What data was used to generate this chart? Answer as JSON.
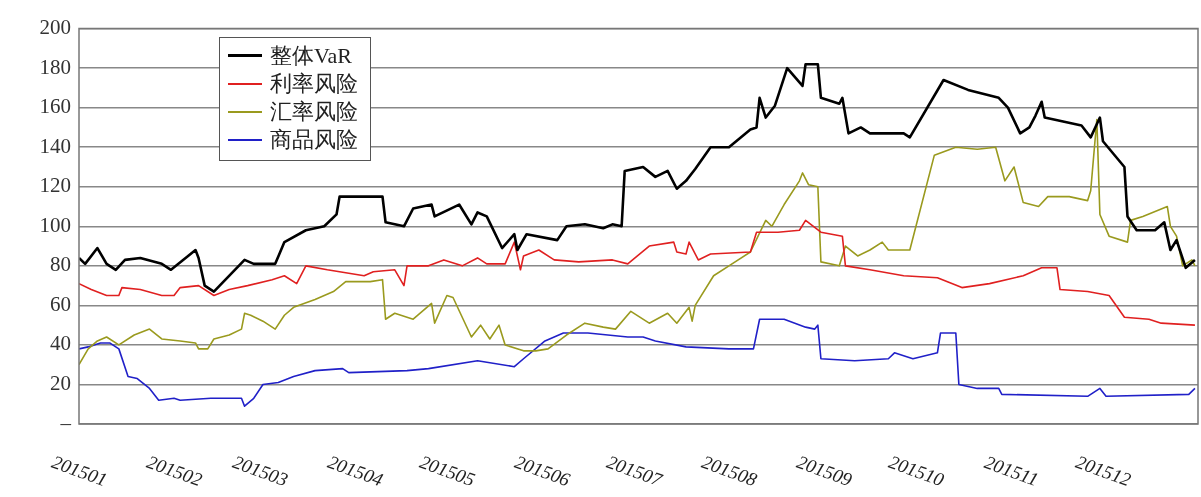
{
  "chart_data": {
    "type": "line",
    "xlim": [
      "2015-01-01",
      "2016-01-01"
    ],
    "xticks": [
      {
        "value": "2015-01",
        "label": "201501"
      },
      {
        "value": "2015-02",
        "label": "201502"
      },
      {
        "value": "2015-03",
        "label": "201503"
      },
      {
        "value": "2015-04",
        "label": "201504"
      },
      {
        "value": "2015-05",
        "label": "201505"
      },
      {
        "value": "2015-06",
        "label": "201506"
      },
      {
        "value": "2015-07",
        "label": "201507"
      },
      {
        "value": "2015-08",
        "label": "201508"
      },
      {
        "value": "2015-09",
        "label": "201509"
      },
      {
        "value": "2015-10",
        "label": "201510"
      },
      {
        "value": "2015-11",
        "label": "201511"
      },
      {
        "value": "2015-12",
        "label": "201512"
      }
    ],
    "ylim": [
      0,
      200
    ],
    "yticks": [
      {
        "value": 0,
        "label": "–"
      },
      20,
      40,
      60,
      80,
      100,
      120,
      140,
      160,
      180,
      200
    ],
    "grid": "y",
    "legend": "top left",
    "marker": "none",
    "line_style": "solid",
    "series": [
      {
        "name": "整体VaR",
        "color": "#000000",
        "x": [
          "2015-01-01",
          "2015-01-03",
          "2015-01-07",
          "2015-01-10",
          "2015-01-13",
          "2015-01-16",
          "2015-01-21",
          "2015-01-28",
          "2015-01-31",
          "2015-02-08",
          "2015-02-09",
          "2015-02-11",
          "2015-02-14",
          "2015-02-24",
          "2015-02-27",
          "2015-03-06",
          "2015-03-09",
          "2015-03-16",
          "2015-03-22",
          "2015-03-26",
          "2015-03-27",
          "2015-04-06",
          "2015-04-10",
          "2015-04-11",
          "2015-04-17",
          "2015-04-20",
          "2015-04-26",
          "2015-04-27",
          "2015-05-05",
          "2015-05-09",
          "2015-05-11",
          "2015-05-14",
          "2015-05-19",
          "2015-05-23",
          "2015-05-24",
          "2015-05-27",
          "2015-06-06",
          "2015-06-09",
          "2015-06-15",
          "2015-06-21",
          "2015-06-24",
          "2015-06-27",
          "2015-06-28",
          "2015-07-04",
          "2015-07-08",
          "2015-07-12",
          "2015-07-15",
          "2015-07-18",
          "2015-07-21",
          "2015-07-26",
          "2015-08-01",
          "2015-08-08",
          "2015-08-10",
          "2015-08-11",
          "2015-08-13",
          "2015-08-16",
          "2015-08-20",
          "2015-08-25",
          "2015-08-26",
          "2015-08-30",
          "2015-08-31",
          "2015-09-06",
          "2015-09-07",
          "2015-09-09",
          "2015-09-13",
          "2015-09-16",
          "2015-09-27",
          "2015-09-29",
          "2015-10-10",
          "2015-10-18",
          "2015-10-28",
          "2015-10-31",
          "2015-11-04",
          "2015-11-07",
          "2015-11-09",
          "2015-11-11",
          "2015-11-12",
          "2015-11-18",
          "2015-11-24",
          "2015-11-27",
          "2015-11-30",
          "2015-12-01",
          "2015-12-08",
          "2015-12-09",
          "2015-12-12",
          "2015-12-18",
          "2015-12-21",
          "2015-12-23",
          "2015-12-25",
          "2015-12-28",
          "2015-12-31"
        ],
        "values": [
          84,
          81,
          89,
          81,
          78,
          83,
          84,
          81,
          78,
          88,
          84,
          70,
          67,
          83,
          81,
          81,
          92,
          98,
          100,
          106,
          115,
          115,
          115,
          102,
          100,
          109,
          111,
          105,
          111,
          101,
          107,
          105,
          89,
          96,
          88,
          96,
          93,
          100,
          101,
          99,
          101,
          100,
          128,
          130,
          125,
          128,
          119,
          123,
          129,
          140,
          140,
          149,
          150,
          165,
          155,
          161,
          180,
          171,
          182,
          182,
          165,
          162,
          165,
          147,
          150,
          147,
          147,
          145,
          174,
          169,
          165,
          160,
          147,
          150,
          156,
          163,
          155,
          153,
          151,
          145,
          155,
          143,
          130,
          105,
          98,
          98,
          102,
          88,
          93,
          79,
          83
        ]
      },
      {
        "name": "利率风险",
        "color": "#e02020",
        "x": [
          "2015-01-01",
          "2015-01-05",
          "2015-01-10",
          "2015-01-14",
          "2015-01-15",
          "2015-01-21",
          "2015-01-28",
          "2015-02-01",
          "2015-02-03",
          "2015-02-09",
          "2015-02-14",
          "2015-02-19",
          "2015-02-25",
          "2015-03-05",
          "2015-03-09",
          "2015-03-13",
          "2015-03-16",
          "2015-03-23",
          "2015-04-04",
          "2015-04-07",
          "2015-04-14",
          "2015-04-17",
          "2015-04-18",
          "2015-04-25",
          "2015-04-30",
          "2015-05-06",
          "2015-05-11",
          "2015-05-14",
          "2015-05-20",
          "2015-05-23",
          "2015-05-25",
          "2015-05-26",
          "2015-05-31",
          "2015-06-05",
          "2015-06-13",
          "2015-06-24",
          "2015-06-29",
          "2015-07-06",
          "2015-07-14",
          "2015-07-15",
          "2015-07-18",
          "2015-07-19",
          "2015-07-22",
          "2015-07-26",
          "2015-08-08",
          "2015-08-10",
          "2015-08-17",
          "2015-08-24",
          "2015-08-26",
          "2015-08-31",
          "2015-09-07",
          "2015-09-08",
          "2015-09-16",
          "2015-09-27",
          "2015-10-08",
          "2015-10-16",
          "2015-10-25",
          "2015-11-05",
          "2015-11-11",
          "2015-11-16",
          "2015-11-17",
          "2015-11-26",
          "2015-12-03",
          "2015-12-08",
          "2015-12-16",
          "2015-12-20",
          "2015-12-31"
        ],
        "values": [
          71,
          68,
          65,
          65,
          69,
          68,
          65,
          65,
          69,
          70,
          65,
          68,
          70,
          73,
          75,
          71,
          80,
          78,
          75,
          77,
          78,
          70,
          80,
          80,
          83,
          80,
          84,
          81,
          81,
          92,
          78,
          85,
          88,
          83,
          82,
          83,
          81,
          90,
          92,
          87,
          86,
          92,
          83,
          86,
          87,
          97,
          97,
          98,
          103,
          97,
          95,
          80,
          78,
          75,
          74,
          69,
          71,
          75,
          79,
          79,
          68,
          67,
          65,
          54,
          53,
          51,
          50
        ]
      },
      {
        "name": "汇率风险",
        "color": "#9a9a1e",
        "x": [
          "2015-01-01",
          "2015-01-04",
          "2015-01-07",
          "2015-01-10",
          "2015-01-14",
          "2015-01-19",
          "2015-01-24",
          "2015-01-28",
          "2015-02-03",
          "2015-02-08",
          "2015-02-09",
          "2015-02-12",
          "2015-02-14",
          "2015-02-19",
          "2015-02-23",
          "2015-02-24",
          "2015-02-26",
          "2015-03-02",
          "2015-03-06",
          "2015-03-09",
          "2015-03-12",
          "2015-03-19",
          "2015-03-25",
          "2015-03-29",
          "2015-04-06",
          "2015-04-10",
          "2015-04-11",
          "2015-04-14",
          "2015-04-20",
          "2015-04-26",
          "2015-04-27",
          "2015-05-01",
          "2015-05-03",
          "2015-05-09",
          "2015-05-12",
          "2015-05-15",
          "2015-05-18",
          "2015-05-20",
          "2015-05-26",
          "2015-05-30",
          "2015-06-03",
          "2015-06-09",
          "2015-06-15",
          "2015-06-21",
          "2015-06-25",
          "2015-06-30",
          "2015-07-06",
          "2015-07-12",
          "2015-07-15",
          "2015-07-19",
          "2015-07-20",
          "2015-07-21",
          "2015-07-27",
          "2015-08-01",
          "2015-08-08",
          "2015-08-13",
          "2015-08-15",
          "2015-08-19",
          "2015-08-24",
          "2015-08-25",
          "2015-08-27",
          "2015-08-30",
          "2015-08-31",
          "2015-09-06",
          "2015-09-08",
          "2015-09-12",
          "2015-09-16",
          "2015-09-20",
          "2015-09-22",
          "2015-09-29",
          "2015-10-07",
          "2015-10-14",
          "2015-10-21",
          "2015-10-27",
          "2015-10-30",
          "2015-11-02",
          "2015-11-05",
          "2015-11-10",
          "2015-11-13",
          "2015-11-20",
          "2015-11-26",
          "2015-11-27",
          "2015-11-29",
          "2015-11-30",
          "2015-12-03",
          "2015-12-09",
          "2015-12-10",
          "2015-12-14",
          "2015-12-22",
          "2015-12-23",
          "2015-12-25",
          "2015-12-27",
          "2015-12-30",
          "2015-12-31"
        ],
        "values": [
          30,
          38,
          42,
          44,
          40,
          45,
          48,
          43,
          42,
          41,
          38,
          38,
          43,
          45,
          48,
          56,
          55,
          52,
          48,
          55,
          59,
          63,
          67,
          72,
          72,
          73,
          53,
          56,
          53,
          61,
          51,
          65,
          64,
          44,
          50,
          43,
          50,
          40,
          37,
          37,
          38,
          45,
          51,
          49,
          48,
          57,
          51,
          56,
          51,
          59,
          52,
          60,
          75,
          80,
          87,
          103,
          100,
          111,
          123,
          127,
          121,
          120,
          82,
          80,
          90,
          85,
          88,
          92,
          88,
          88,
          136,
          140,
          139,
          140,
          123,
          130,
          112,
          110,
          115,
          115,
          113,
          118,
          154,
          106,
          95,
          92,
          103,
          105,
          110,
          100,
          95,
          80,
          83,
          80
        ]
      },
      {
        "name": "商品风险",
        "color": "#2020c8",
        "x": [
          "2015-01-01",
          "2015-01-04",
          "2015-01-08",
          "2015-01-11",
          "2015-01-14",
          "2015-01-17",
          "2015-01-20",
          "2015-01-24",
          "2015-01-27",
          "2015-02-01",
          "2015-02-03",
          "2015-02-13",
          "2015-02-23",
          "2015-02-24",
          "2015-02-27",
          "2015-03-02",
          "2015-03-07",
          "2015-03-12",
          "2015-03-19",
          "2015-03-28",
          "2015-03-30",
          "2015-04-18",
          "2015-04-25",
          "2015-05-11",
          "2015-05-23",
          "2015-05-26",
          "2015-06-02",
          "2015-06-08",
          "2015-06-16",
          "2015-06-29",
          "2015-07-04",
          "2015-07-08",
          "2015-07-18",
          "2015-08-01",
          "2015-08-09",
          "2015-08-11",
          "2015-08-19",
          "2015-08-26",
          "2015-08-29",
          "2015-08-30",
          "2015-08-31",
          "2015-09-11",
          "2015-09-22",
          "2015-09-24",
          "2015-09-30",
          "2015-10-08",
          "2015-10-09",
          "2015-10-14",
          "2015-10-15",
          "2015-10-21",
          "2015-10-28",
          "2015-10-29",
          "2015-11-26",
          "2015-11-30",
          "2015-12-02",
          "2015-12-29",
          "2015-12-31"
        ],
        "values": [
          38,
          39,
          41,
          41,
          38,
          24,
          23,
          18,
          12,
          13,
          12,
          13,
          13,
          9,
          13,
          20,
          21,
          24,
          27,
          28,
          26,
          27,
          28,
          32,
          29,
          33,
          42,
          46,
          46,
          44,
          44,
          42,
          39,
          38,
          38,
          53,
          53,
          49,
          48,
          50,
          33,
          32,
          33,
          36,
          33,
          36,
          46,
          46,
          20,
          18,
          18,
          15,
          14,
          18,
          14,
          15,
          18
        ]
      }
    ]
  }
}
